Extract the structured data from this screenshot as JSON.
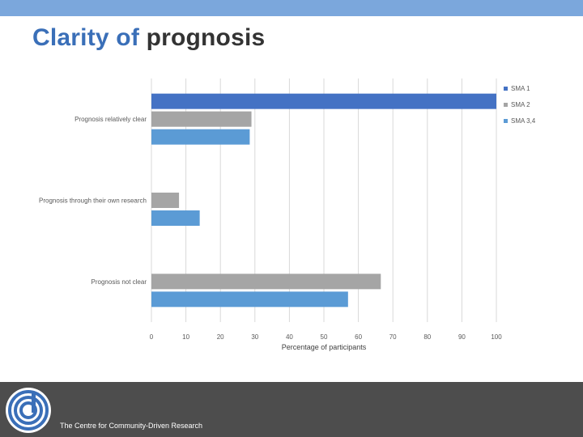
{
  "slide": {
    "title_accent": "Clarity of",
    "title_rest": "prognosis"
  },
  "footer": {
    "org_name": "The Centre for Community-Driven Research",
    "logo_icon": "ccdr-logo-icon"
  },
  "colors": {
    "top_bar": "#7ba7dc",
    "footer_bg": "#4d4d4d",
    "sma1": "#4472c4",
    "sma2": "#a5a5a5",
    "sma34": "#5b9bd5"
  },
  "chart_data": {
    "type": "bar",
    "orientation": "horizontal",
    "title": "",
    "categories": [
      "Prognosis relatively clear",
      "Prognosis through their own research",
      "Prognosis not clear"
    ],
    "series": [
      {
        "name": "SMA 1",
        "values": [
          100,
          0,
          0
        ],
        "color": "#4472c4"
      },
      {
        "name": "SMA 2",
        "values": [
          29,
          8,
          66.5
        ],
        "color": "#a5a5a5"
      },
      {
        "name": "SMA 3,4",
        "values": [
          28.5,
          14,
          57
        ],
        "color": "#5b9bd5"
      }
    ],
    "xlabel": "Percentage of participants",
    "ylabel": "",
    "xlim": [
      0,
      100
    ],
    "xticks": [
      0,
      10,
      20,
      30,
      40,
      50,
      60,
      70,
      80,
      90,
      100
    ],
    "grid": true,
    "legend_position": "top-right"
  }
}
